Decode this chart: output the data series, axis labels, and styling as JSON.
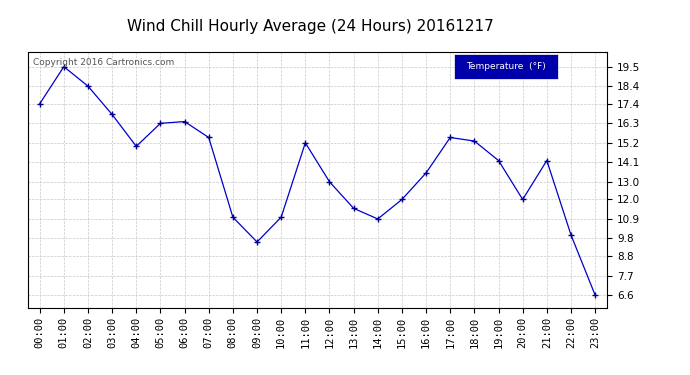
{
  "title": "Wind Chill Hourly Average (24 Hours) 20161217",
  "copyright_text": "Copyright 2016 Cartronics.com",
  "legend_label": "Temperature  (°F)",
  "x_labels": [
    "00:00",
    "01:00",
    "02:00",
    "03:00",
    "04:00",
    "05:00",
    "06:00",
    "07:00",
    "08:00",
    "09:00",
    "10:00",
    "11:00",
    "12:00",
    "13:00",
    "14:00",
    "15:00",
    "16:00",
    "17:00",
    "18:00",
    "19:00",
    "20:00",
    "21:00",
    "22:00",
    "23:00"
  ],
  "y_values": [
    17.4,
    19.5,
    18.4,
    16.8,
    15.0,
    16.3,
    16.4,
    15.5,
    11.0,
    9.6,
    11.0,
    15.2,
    13.0,
    11.5,
    10.9,
    12.0,
    13.5,
    15.5,
    15.3,
    14.2,
    12.0,
    14.2,
    10.0,
    6.6
  ],
  "ylim": [
    5.9,
    20.3
  ],
  "yticks": [
    6.6,
    7.7,
    8.8,
    9.8,
    10.9,
    12.0,
    13.0,
    14.1,
    15.2,
    16.3,
    17.4,
    18.4,
    19.5
  ],
  "line_color": "#0000cc",
  "marker": "+",
  "marker_size": 5,
  "marker_color": "#000088",
  "bg_color": "#ffffff",
  "plot_bg_color": "#ffffff",
  "grid_color": "#bbbbbb",
  "title_color": "#000000",
  "legend_bg": "#0000aa",
  "legend_text_color": "#ffffff",
  "title_fontsize": 11,
  "tick_fontsize": 7.5,
  "copyright_fontsize": 6.5,
  "border_color": "#000000"
}
